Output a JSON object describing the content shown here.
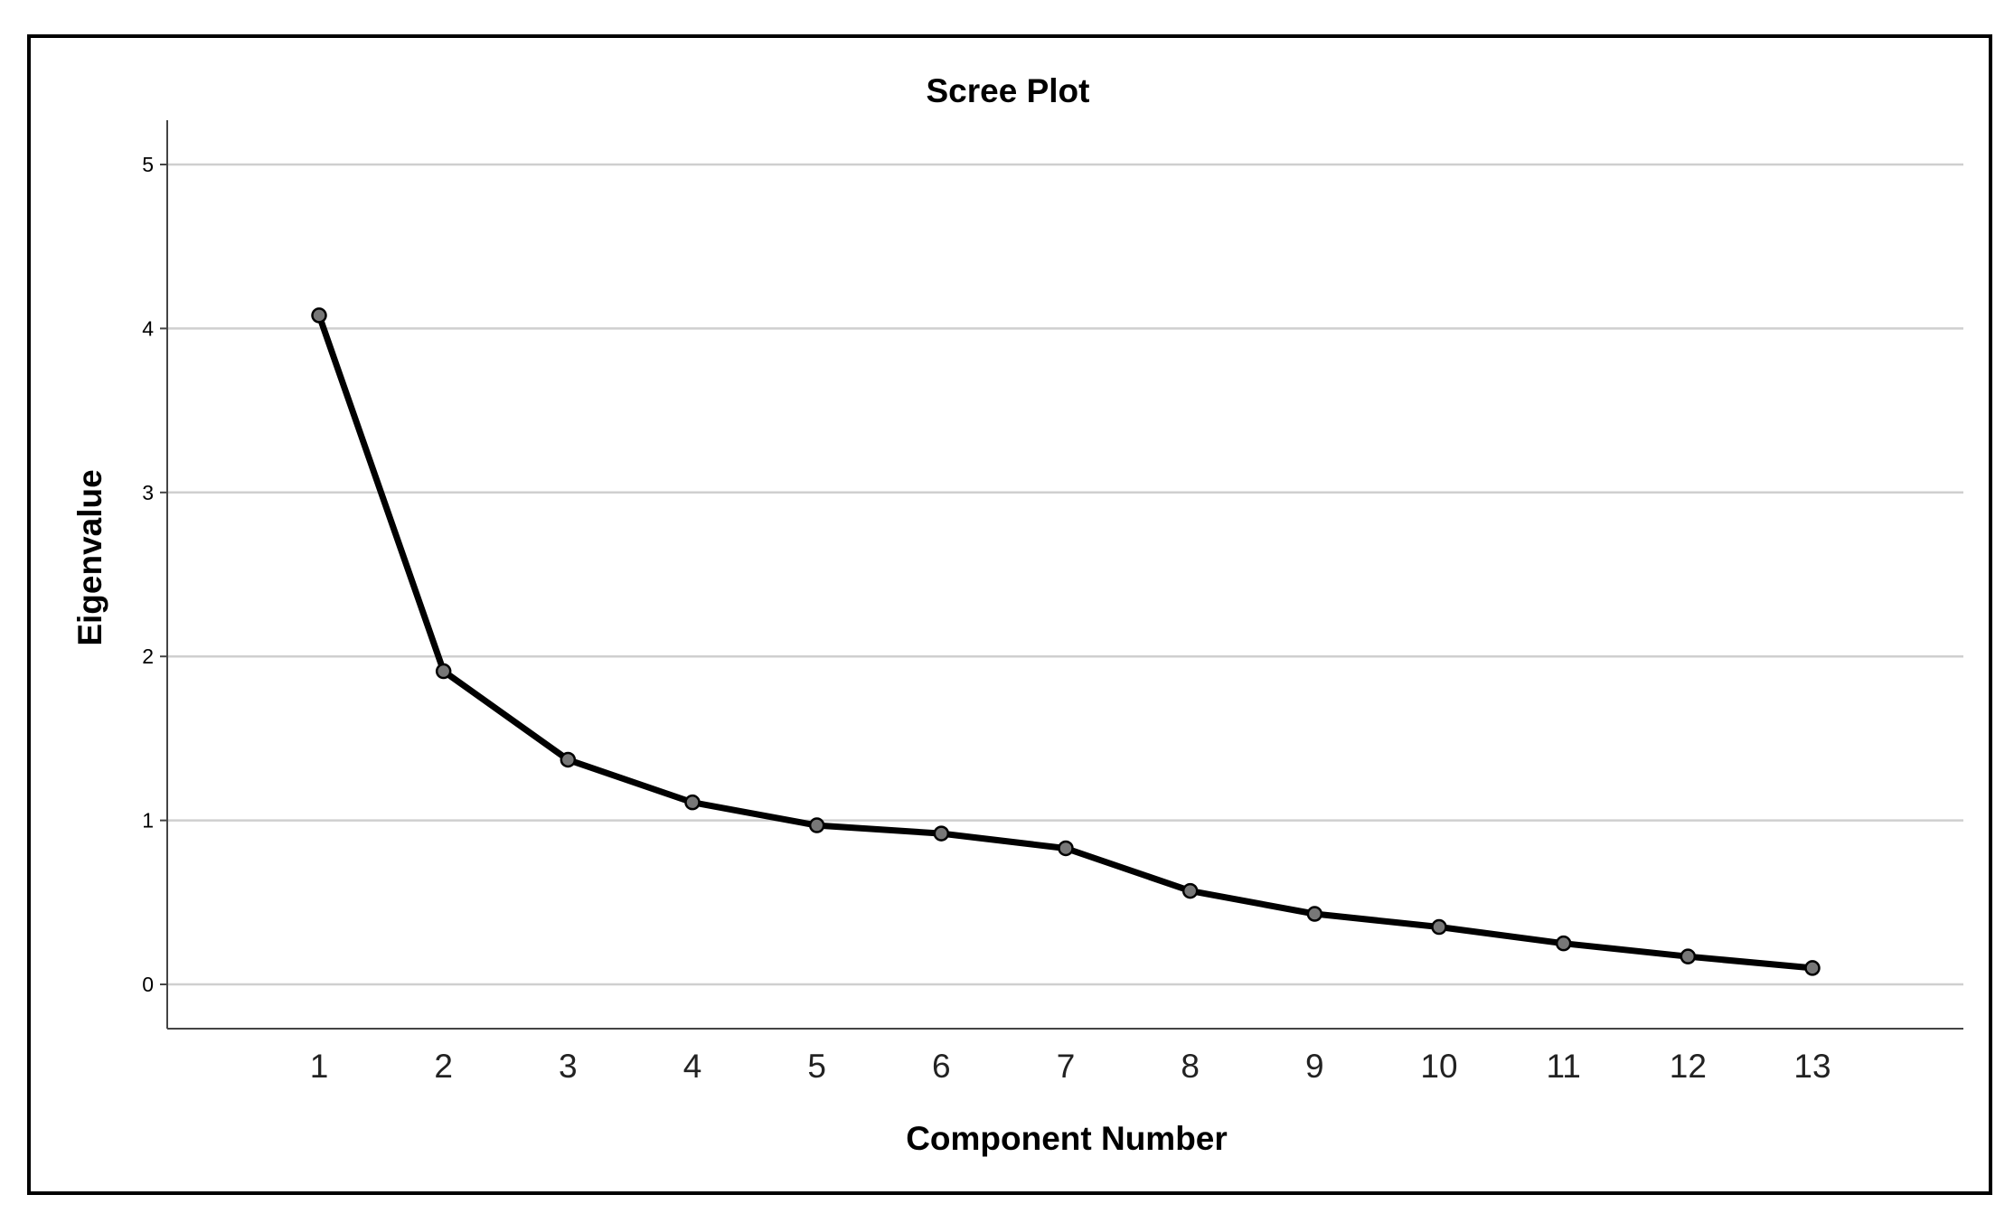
{
  "chart_data": {
    "type": "line",
    "title": "Scree Plot",
    "xlabel": "Component Number",
    "ylabel": "Eigenvalue",
    "categories": [
      "1",
      "2",
      "3",
      "4",
      "5",
      "6",
      "7",
      "8",
      "9",
      "10",
      "11",
      "12",
      "13"
    ],
    "x": [
      1,
      2,
      3,
      4,
      5,
      6,
      7,
      8,
      9,
      10,
      11,
      12,
      13
    ],
    "y": [
      4.08,
      1.91,
      1.37,
      1.11,
      0.97,
      0.92,
      0.83,
      0.57,
      0.43,
      0.35,
      0.25,
      0.17,
      0.1
    ],
    "yticks": [
      "0",
      "1",
      "2",
      "3",
      "4",
      "5"
    ],
    "ylim": [
      -0.27,
      5.27
    ],
    "grid": true,
    "legend": "none",
    "colors": {
      "line": "#000000",
      "marker": "#777777",
      "grid": "#cfcfcf",
      "frame": "#000000"
    }
  }
}
